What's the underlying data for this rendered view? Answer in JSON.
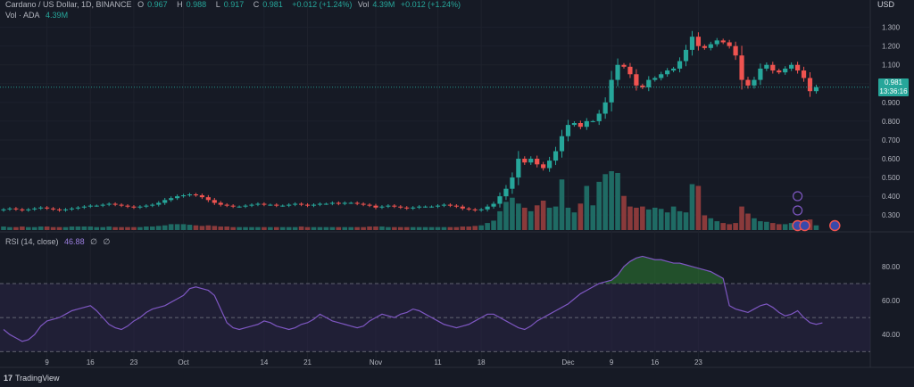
{
  "legend": {
    "symbol": "Cardano / US Dollar, 1D, BINANCE",
    "o_label": "O",
    "o_value": "0.967",
    "h_label": "H",
    "h_value": "0.988",
    "l_label": "L",
    "l_value": "0.917",
    "c_label": "C",
    "c_value": "0.981",
    "change": "+0.012 (+1.24%)",
    "vol_label": "Vol · ADA",
    "vol_value": "4.39M",
    "rsi_label": "RSI (14, close)",
    "rsi_value": "46.88",
    "rsi_extra1": "∅",
    "rsi_extra2": "∅"
  },
  "price_axis": {
    "currency": "USD",
    "ticks": [
      "1.300",
      "1.200",
      "1.100",
      "1.000",
      "0.900",
      "0.800",
      "0.700",
      "0.600",
      "0.500",
      "0.400",
      "0.300"
    ]
  },
  "rsi_axis": {
    "ticks": [
      "80.00",
      "60.00",
      "40.00"
    ]
  },
  "price_tag": {
    "price": "0.981",
    "countdown": "13:36:16"
  },
  "x_axis": {
    "ticks": [
      "9",
      "16",
      "23",
      "Oct",
      "14",
      "21",
      "Nov",
      "11",
      "18",
      "Dec",
      "9",
      "16",
      "23"
    ]
  },
  "branding": {
    "logo": "17",
    "name": "TradingView"
  },
  "colors": {
    "up": "#26a69a",
    "down": "#ef5350",
    "rsi_line": "#7e57c2",
    "background": "#161a25"
  },
  "chart_data": {
    "type": "candlestick",
    "start": "2024-09-02",
    "interval": "1D",
    "price_range": [
      0.22,
      1.36
    ],
    "rsi_range": [
      27,
      92
    ],
    "rsi_bands": {
      "upper": 70,
      "middle": 50,
      "lower": 30
    },
    "closes": [
      0.33,
      0.335,
      0.33,
      0.325,
      0.33,
      0.335,
      0.34,
      0.335,
      0.33,
      0.325,
      0.33,
      0.335,
      0.34,
      0.345,
      0.35,
      0.35,
      0.355,
      0.36,
      0.355,
      0.35,
      0.345,
      0.34,
      0.345,
      0.35,
      0.355,
      0.365,
      0.38,
      0.39,
      0.4,
      0.405,
      0.41,
      0.405,
      0.395,
      0.38,
      0.365,
      0.355,
      0.35,
      0.345,
      0.345,
      0.35,
      0.355,
      0.36,
      0.355,
      0.355,
      0.35,
      0.35,
      0.355,
      0.36,
      0.355,
      0.35,
      0.355,
      0.36,
      0.36,
      0.365,
      0.36,
      0.365,
      0.365,
      0.36,
      0.355,
      0.35,
      0.34,
      0.345,
      0.35,
      0.345,
      0.34,
      0.335,
      0.34,
      0.345,
      0.345,
      0.345,
      0.35,
      0.355,
      0.35,
      0.345,
      0.335,
      0.33,
      0.325,
      0.33,
      0.345,
      0.36,
      0.4,
      0.44,
      0.5,
      0.6,
      0.58,
      0.6,
      0.57,
      0.55,
      0.59,
      0.64,
      0.72,
      0.78,
      0.79,
      0.77,
      0.8,
      0.8,
      0.84,
      0.9,
      1.02,
      1.1,
      1.09,
      1.05,
      0.99,
      0.98,
      1.02,
      1.03,
      1.05,
      1.07,
      1.08,
      1.12,
      1.18,
      1.25,
      1.2,
      1.19,
      1.21,
      1.23,
      1.22,
      1.2,
      1.15,
      1.02,
      0.99,
      1.02,
      1.08,
      1.1,
      1.07,
      1.06,
      1.08,
      1.1,
      1.07,
      1.03,
      0.96,
      0.981
    ],
    "rsi": [
      43,
      40,
      38,
      36,
      37,
      40,
      45,
      48,
      49,
      50,
      52,
      54,
      55,
      56,
      57,
      54,
      50,
      46,
      44,
      43,
      45,
      48,
      50,
      53,
      55,
      56,
      57,
      59,
      61,
      63,
      67,
      68,
      67,
      66,
      63,
      55,
      47,
      44,
      43,
      44,
      45,
      46,
      48,
      47,
      45,
      44,
      43,
      44,
      46,
      47,
      49,
      52,
      50,
      48,
      47,
      46,
      45,
      44,
      45,
      48,
      50,
      52,
      51,
      50,
      52,
      53,
      55,
      54,
      52,
      50,
      48,
      46,
      45,
      44,
      45,
      46,
      48,
      50,
      52,
      52,
      50,
      48,
      46,
      44,
      43,
      45,
      48,
      50,
      52,
      54,
      56,
      58,
      61,
      64,
      66,
      68,
      70,
      71,
      72,
      75,
      80,
      83,
      85,
      86,
      85,
      84,
      84,
      83,
      82,
      82,
      81,
      80,
      79,
      78,
      77,
      75,
      73,
      57,
      55,
      54,
      53,
      55,
      57,
      58,
      56,
      53,
      51,
      52,
      54,
      50,
      47,
      46,
      46.88
    ],
    "volumes": [
      0.06,
      0.05,
      0.05,
      0.06,
      0.05,
      0.05,
      0.06,
      0.06,
      0.05,
      0.05,
      0.05,
      0.06,
      0.06,
      0.06,
      0.06,
      0.05,
      0.05,
      0.06,
      0.05,
      0.05,
      0.05,
      0.05,
      0.05,
      0.06,
      0.06,
      0.07,
      0.08,
      0.1,
      0.1,
      0.1,
      0.09,
      0.08,
      0.07,
      0.08,
      0.07,
      0.06,
      0.06,
      0.05,
      0.05,
      0.05,
      0.05,
      0.05,
      0.05,
      0.05,
      0.05,
      0.05,
      0.05,
      0.05,
      0.06,
      0.05,
      0.05,
      0.05,
      0.05,
      0.05,
      0.05,
      0.05,
      0.05,
      0.05,
      0.05,
      0.06,
      0.06,
      0.06,
      0.05,
      0.05,
      0.05,
      0.05,
      0.05,
      0.05,
      0.05,
      0.05,
      0.05,
      0.05,
      0.05,
      0.05,
      0.06,
      0.06,
      0.07,
      0.08,
      0.12,
      0.16,
      0.32,
      0.48,
      0.55,
      0.45,
      0.38,
      0.32,
      0.42,
      0.5,
      0.38,
      0.4,
      0.86,
      0.38,
      0.3,
      0.45,
      0.75,
      0.42,
      0.82,
      0.95,
      1,
      0.97,
      0.58,
      0.4,
      0.38,
      0.4,
      0.35,
      0.38,
      0.36,
      0.3,
      0.4,
      0.32,
      0.3,
      0.78,
      0.75,
      0.25,
      0.2,
      0.15,
      0.12,
      0.1,
      0.12,
      0.4,
      0.28,
      0.2,
      0.15,
      0.14,
      0.12,
      0.1,
      0.1,
      0.12,
      0.1,
      0.1,
      0.18,
      0.08
    ]
  }
}
